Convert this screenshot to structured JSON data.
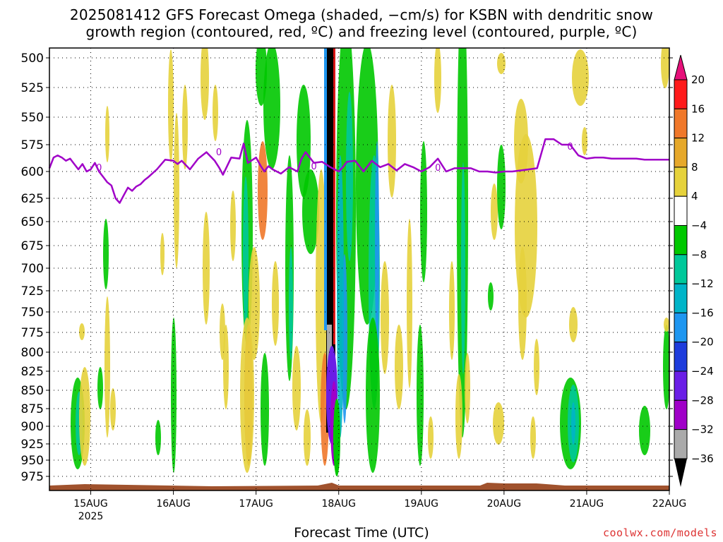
{
  "title_line1": "2025081412 GFS Forecast Omega (shaded, −cm/s) for KSBN with dendritic snow",
  "title_line2": "growth region (contoured, red, ºC) and freezing level (contoured, purple, ºC)",
  "xlabel": "Forecast Time (UTC)",
  "credit": "coolwx.com/models",
  "chart_data": {
    "type": "heatmap",
    "title": "2025081412 GFS Forecast Omega (shaded, −cm/s) for KSBN with dendritic snow growth region (contoured, red, ºC) and freezing level (contoured, purple, ºC)",
    "xlabel": "Forecast Time (UTC)",
    "ylabel": "",
    "y_axis": "pressure (hPa), inverted",
    "yticks": [
      500,
      525,
      550,
      575,
      600,
      625,
      650,
      675,
      700,
      725,
      750,
      775,
      800,
      825,
      850,
      875,
      900,
      925,
      950,
      975
    ],
    "xticks": [
      {
        "day": 0.5,
        "label": "15AUG",
        "sub": "2025"
      },
      {
        "day": 1.5,
        "label": "16AUG",
        "sub": ""
      },
      {
        "day": 2.5,
        "label": "17AUG",
        "sub": ""
      },
      {
        "day": 3.5,
        "label": "18AUG",
        "sub": ""
      },
      {
        "day": 4.5,
        "label": "19AUG",
        "sub": ""
      },
      {
        "day": 5.5,
        "label": "20AUG",
        "sub": ""
      },
      {
        "day": 6.5,
        "label": "21AUG",
        "sub": ""
      },
      {
        "day": 7.5,
        "label": "22AUG",
        "sub": ""
      }
    ],
    "xlim_days": [
      0,
      7.5
    ],
    "ylim": [
      975,
      500
    ],
    "grid": true,
    "colorbar": {
      "labels": [
        "20",
        "16",
        "12",
        "8",
        "4",
        "−4",
        "−8",
        "−12",
        "−16",
        "−20",
        "−24",
        "−28",
        "−32",
        "−36"
      ],
      "colors": [
        "#ff1a1a",
        "#f0782a",
        "#e6a82a",
        "#e6d23c",
        "#ffffff",
        "#00c800",
        "#00c89a",
        "#00b4c8",
        "#1e96f0",
        "#1e3cdc",
        "#6a1ee6",
        "#a000c8",
        "#aaaaaa"
      ],
      "top_color": "#e6107a",
      "bottom_color": "#000000"
    },
    "freezing_level": {
      "color": "#a000c8",
      "label": "0",
      "day": [
        0.0,
        0.05,
        0.1,
        0.15,
        0.2,
        0.25,
        0.3,
        0.35,
        0.4,
        0.45,
        0.5,
        0.55,
        0.6,
        0.65,
        0.7,
        0.75,
        0.8,
        0.85,
        0.9,
        0.95,
        1.0,
        1.05,
        1.1,
        1.15,
        1.2,
        1.3,
        1.4,
        1.5,
        1.55,
        1.6,
        1.7,
        1.8,
        1.9,
        2.0,
        2.05,
        2.1,
        2.2,
        2.3,
        2.35,
        2.4,
        2.5,
        2.55,
        2.6,
        2.65,
        2.7,
        2.8,
        2.9,
        3.0,
        3.05,
        3.1,
        3.2,
        3.3,
        3.4,
        3.5,
        3.55,
        3.6,
        3.7,
        3.8,
        3.9,
        4.0,
        4.1,
        4.2,
        4.3,
        4.4,
        4.5,
        4.6,
        4.7,
        4.8,
        4.9,
        5.0,
        5.1,
        5.2,
        5.3,
        5.4,
        5.5,
        5.6,
        5.7,
        5.8,
        5.9,
        6.0,
        6.1,
        6.2,
        6.3,
        6.4,
        6.5,
        6.6,
        6.7,
        6.8,
        6.9,
        7.0,
        7.1,
        7.2,
        7.3,
        7.4,
        7.5
      ],
      "hpa": [
        597,
        587,
        585,
        587,
        590,
        588,
        593,
        598,
        593,
        600,
        598,
        592,
        600,
        605,
        610,
        613,
        625,
        630,
        622,
        615,
        618,
        614,
        612,
        608,
        605,
        598,
        589,
        590,
        593,
        590,
        598,
        588,
        582,
        590,
        596,
        603,
        587,
        588,
        574,
        592,
        587,
        594,
        600,
        595,
        598,
        602,
        596,
        600,
        588,
        582,
        592,
        591,
        596,
        600,
        596,
        591,
        590,
        600,
        590,
        596,
        593,
        599,
        593,
        596,
        600,
        596,
        588,
        600,
        597,
        597,
        597,
        600,
        600,
        601,
        600,
        600,
        599,
        598,
        597,
        570,
        570,
        575,
        575,
        585,
        588,
        587,
        587,
        588,
        588,
        588,
        588,
        589,
        589,
        589,
        589
      ]
    }
  }
}
